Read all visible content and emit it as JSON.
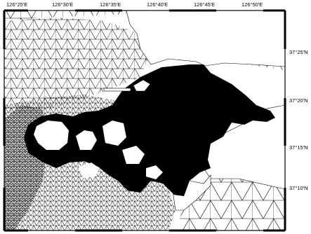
{
  "map": {
    "top_labels": [
      "126°25'E",
      "126°30'E",
      "126°35'E",
      "126°40'E",
      "126°45'E",
      "126°50'E"
    ],
    "right_labels": [
      "37°25'N",
      "37°20'N",
      "37°15'N",
      "37°10'N"
    ]
  },
  "colors": {
    "land": "#ffffff",
    "mesh_line": "#000000",
    "dense_mesh": "#000000",
    "frame": "#000000"
  }
}
